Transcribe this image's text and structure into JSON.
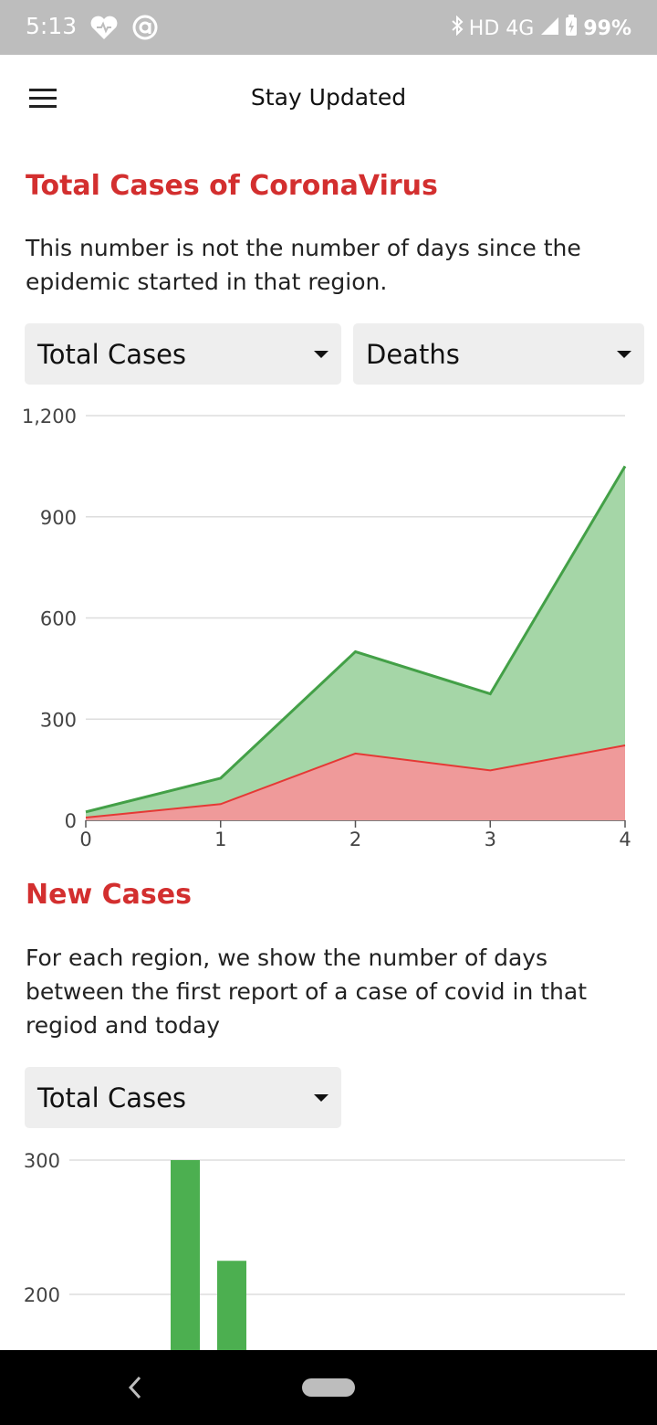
{
  "status_bar": {
    "time": "5:13",
    "network": "HD 4G",
    "battery": "99%"
  },
  "app_bar": {
    "title": "Stay Updated",
    "menu_icon": "menu-icon"
  },
  "section1": {
    "title": "Total Cases of CoronaVirus",
    "description": "This number is not the number of days since the epidemic started in that region.",
    "dropdown_left": "Total Cases",
    "dropdown_right": "Deaths"
  },
  "section2": {
    "title": "New Cases",
    "description": "For each region, we show the number of days between the first report of a case of covid in that regiod and today",
    "dropdown": "Total Cases"
  },
  "colors": {
    "accent_red": "#d32f2f",
    "green_line": "#43a047",
    "green_fill": "#a5d6a7",
    "red_line": "#e53935",
    "red_fill": "#ef9a9a",
    "bar_green": "#4caf50"
  },
  "chart_data": [
    {
      "type": "area",
      "x": [
        0,
        1,
        2,
        3,
        4
      ],
      "x_tick_labels": [
        "0",
        "1",
        "2",
        "3",
        "4"
      ],
      "y_tick_labels": [
        "0",
        "300",
        "600",
        "900",
        "1,200"
      ],
      "ylim": [
        0,
        1200
      ],
      "series": [
        {
          "name": "Total Cases",
          "values": [
            25,
            125,
            500,
            375,
            1050
          ]
        },
        {
          "name": "Deaths",
          "values": [
            8,
            48,
            198,
            148,
            222
          ]
        }
      ]
    },
    {
      "type": "bar",
      "y_tick_labels": [
        "200",
        "300"
      ],
      "visible_ylim": [
        165,
        300
      ],
      "series": [
        {
          "name": "Total Cases",
          "values": [
            300,
            225
          ]
        }
      ]
    }
  ]
}
